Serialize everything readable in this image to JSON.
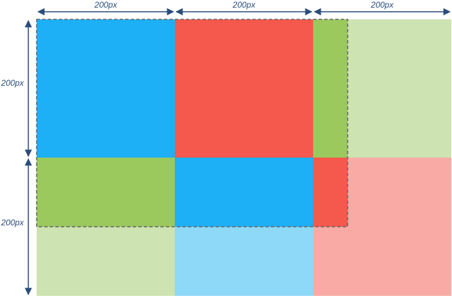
{
  "labels": {
    "top": [
      "200px",
      "200px",
      "200px"
    ],
    "left": [
      "200px",
      "200px"
    ]
  }
}
